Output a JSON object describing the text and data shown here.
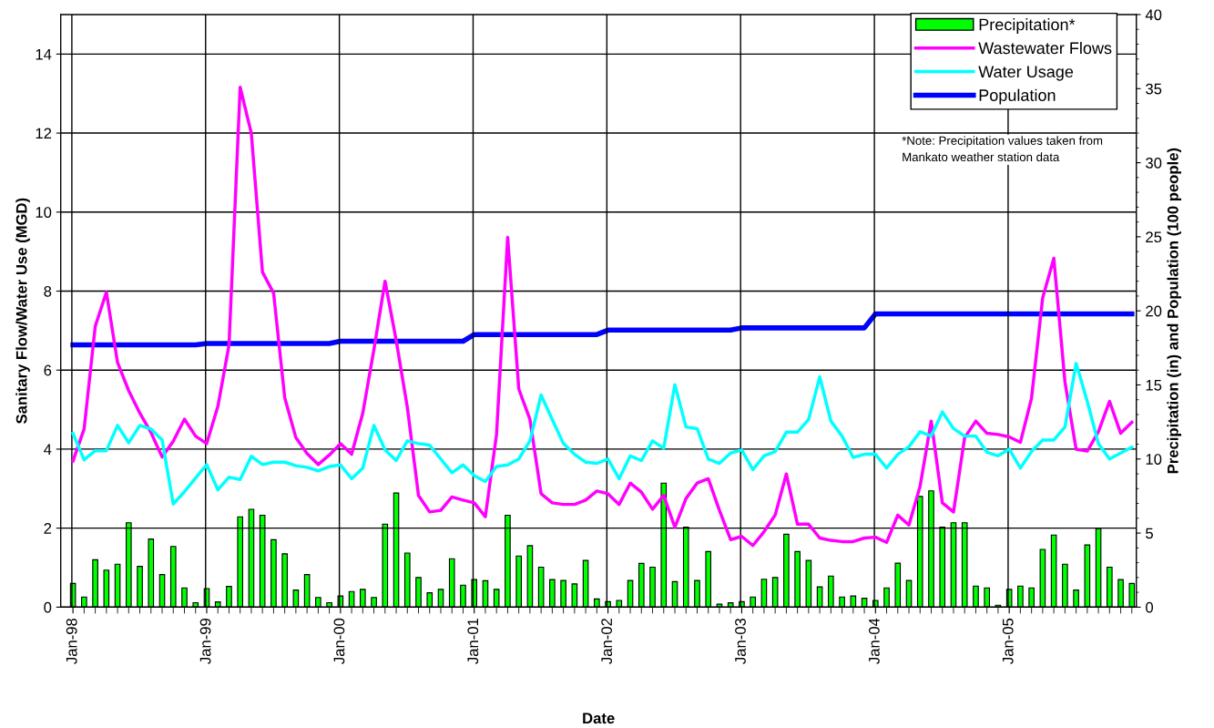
{
  "chart_data": {
    "type": "line",
    "xlabel": "Date",
    "ylabel": "Sanitary Flow/Water Use (MGD)",
    "y2label": "Precipitation (in) and Population (100 people)",
    "categories": [
      "Jan-98",
      null,
      null,
      null,
      null,
      null,
      null,
      null,
      null,
      null,
      null,
      null,
      "Jan-99",
      null,
      null,
      null,
      null,
      null,
      null,
      null,
      null,
      null,
      null,
      null,
      "Jan-00",
      null,
      null,
      null,
      null,
      null,
      null,
      null,
      null,
      null,
      null,
      null,
      "Jan-01",
      null,
      null,
      null,
      null,
      null,
      null,
      null,
      null,
      null,
      null,
      null,
      "Jan-02",
      null,
      null,
      null,
      null,
      null,
      null,
      null,
      null,
      null,
      null,
      null,
      "Jan-03",
      null,
      null,
      null,
      null,
      null,
      null,
      null,
      null,
      null,
      null,
      null,
      "Jan-04",
      null,
      null,
      null,
      null,
      null,
      null,
      null,
      null,
      null,
      null,
      null,
      "Jan-05",
      null,
      null,
      null,
      null,
      null,
      null,
      null,
      null,
      null,
      null,
      null
    ],
    "series": [
      {
        "name": "Precipitation*",
        "type": "bar",
        "axis": "y2",
        "color": "#00ff00",
        "values": [
          1.6,
          0.68,
          3.2,
          2.5,
          2.9,
          5.7,
          2.75,
          4.6,
          2.2,
          4.1,
          1.3,
          0.3,
          1.25,
          0.35,
          1.4,
          6.1,
          6.6,
          6.2,
          4.55,
          3.6,
          1.15,
          2.2,
          0.65,
          0.3,
          0.75,
          1.05,
          1.2,
          0.65,
          5.6,
          7.7,
          3.65,
          2.0,
          0.97,
          1.2,
          3.27,
          1.48,
          1.86,
          1.78,
          1.2,
          6.2,
          3.45,
          4.15,
          2.7,
          1.86,
          1.8,
          1.57,
          3.15,
          0.55,
          0.37,
          0.45,
          1.8,
          2.95,
          2.7,
          8.37,
          1.72,
          5.4,
          1.8,
          3.75,
          0.2,
          0.29,
          0.37,
          0.68,
          1.88,
          2.0,
          4.92,
          3.75,
          3.15,
          1.37,
          2.1,
          0.68,
          0.75,
          0.6,
          0.45,
          1.3,
          2.97,
          1.8,
          7.47,
          7.85,
          5.4,
          5.7,
          5.7,
          1.42,
          1.3,
          0.13,
          1.2,
          1.42,
          1.3,
          3.9,
          4.87,
          2.9,
          1.15,
          4.2,
          5.3,
          2.7,
          1.86,
          1.6
        ]
      },
      {
        "name": "Wastewater Flows",
        "color": "#ff00ff",
        "values": [
          3.7,
          4.51,
          7.11,
          7.97,
          6.19,
          5.48,
          4.91,
          4.42,
          3.8,
          4.2,
          4.76,
          4.33,
          4.14,
          5.08,
          6.63,
          13.16,
          12.0,
          8.48,
          7.95,
          5.3,
          4.29,
          3.89,
          3.61,
          3.85,
          4.14,
          3.87,
          4.91,
          6.52,
          8.25,
          6.75,
          5.06,
          2.83,
          2.41,
          2.45,
          2.79,
          2.71,
          2.64,
          2.29,
          4.37,
          9.36,
          5.52,
          4.75,
          2.87,
          2.64,
          2.6,
          2.6,
          2.71,
          2.94,
          2.87,
          2.6,
          3.14,
          2.91,
          2.48,
          2.83,
          2.02,
          2.75,
          3.14,
          3.25,
          2.45,
          1.71,
          1.79,
          1.56,
          1.91,
          2.33,
          3.37,
          2.1,
          2.1,
          1.75,
          1.69,
          1.66,
          1.66,
          1.75,
          1.77,
          1.64,
          2.33,
          2.08,
          3.06,
          4.71,
          2.64,
          2.41,
          4.29,
          4.71,
          4.4,
          4.37,
          4.31,
          4.17,
          5.29,
          7.83,
          8.83,
          5.7,
          4.0,
          3.95,
          4.44,
          5.21,
          4.4,
          4.68
        ]
      },
      {
        "name": "Water Usage",
        "color": "#00ffff",
        "values": [
          4.4,
          3.73,
          3.96,
          3.96,
          4.6,
          4.16,
          4.6,
          4.51,
          4.23,
          2.61,
          2.92,
          3.27,
          3.61,
          2.97,
          3.29,
          3.23,
          3.82,
          3.61,
          3.67,
          3.67,
          3.58,
          3.54,
          3.45,
          3.56,
          3.6,
          3.25,
          3.52,
          4.6,
          3.98,
          3.71,
          4.21,
          4.14,
          4.1,
          3.75,
          3.4,
          3.6,
          3.33,
          3.18,
          3.56,
          3.6,
          3.75,
          4.21,
          5.37,
          4.75,
          4.14,
          3.87,
          3.67,
          3.64,
          3.75,
          3.25,
          3.83,
          3.71,
          4.21,
          4.02,
          5.63,
          4.56,
          4.52,
          3.75,
          3.64,
          3.9,
          3.98,
          3.48,
          3.83,
          3.94,
          4.43,
          4.43,
          4.75,
          5.83,
          4.71,
          4.33,
          3.79,
          3.87,
          3.87,
          3.52,
          3.87,
          4.06,
          4.44,
          4.33,
          4.94,
          4.52,
          4.33,
          4.33,
          3.92,
          3.83,
          4.0,
          3.52,
          3.94,
          4.23,
          4.23,
          4.56,
          6.17,
          5.21,
          4.14,
          3.75,
          3.9,
          4.05
        ]
      },
      {
        "name": "Population",
        "axis": "y2",
        "color": "#0000ff",
        "values": [
          17.7,
          17.7,
          17.7,
          17.7,
          17.7,
          17.7,
          17.7,
          17.7,
          17.7,
          17.7,
          17.7,
          17.7,
          17.8,
          17.8,
          17.8,
          17.8,
          17.8,
          17.8,
          17.8,
          17.8,
          17.8,
          17.8,
          17.8,
          17.8,
          17.95,
          17.95,
          17.95,
          17.95,
          17.95,
          17.95,
          17.95,
          17.95,
          17.95,
          17.95,
          17.95,
          17.95,
          18.4,
          18.4,
          18.4,
          18.4,
          18.4,
          18.4,
          18.4,
          18.4,
          18.4,
          18.4,
          18.4,
          18.4,
          18.7,
          18.7,
          18.7,
          18.7,
          18.7,
          18.7,
          18.7,
          18.7,
          18.7,
          18.7,
          18.7,
          18.7,
          18.85,
          18.85,
          18.85,
          18.85,
          18.85,
          18.85,
          18.85,
          18.85,
          18.85,
          18.85,
          18.85,
          18.85,
          19.8,
          19.8,
          19.8,
          19.8,
          19.8,
          19.8,
          19.8,
          19.8,
          19.8,
          19.8,
          19.8,
          19.8,
          19.8,
          19.8,
          19.8,
          19.8,
          19.8,
          19.8,
          19.8,
          19.8,
          19.8,
          19.8,
          19.8,
          19.8
        ]
      }
    ],
    "ylim": [
      0,
      15
    ],
    "yticks": [
      0,
      2,
      4,
      6,
      8,
      10,
      12,
      14
    ],
    "y2lim": [
      0,
      40
    ],
    "y2ticks": [
      0,
      5,
      10,
      15,
      20,
      25,
      30,
      35,
      40
    ],
    "grid": true,
    "legend": "top right",
    "annotations": [
      "*Note: Precipitation values taken from Mankato weather station data"
    ]
  }
}
